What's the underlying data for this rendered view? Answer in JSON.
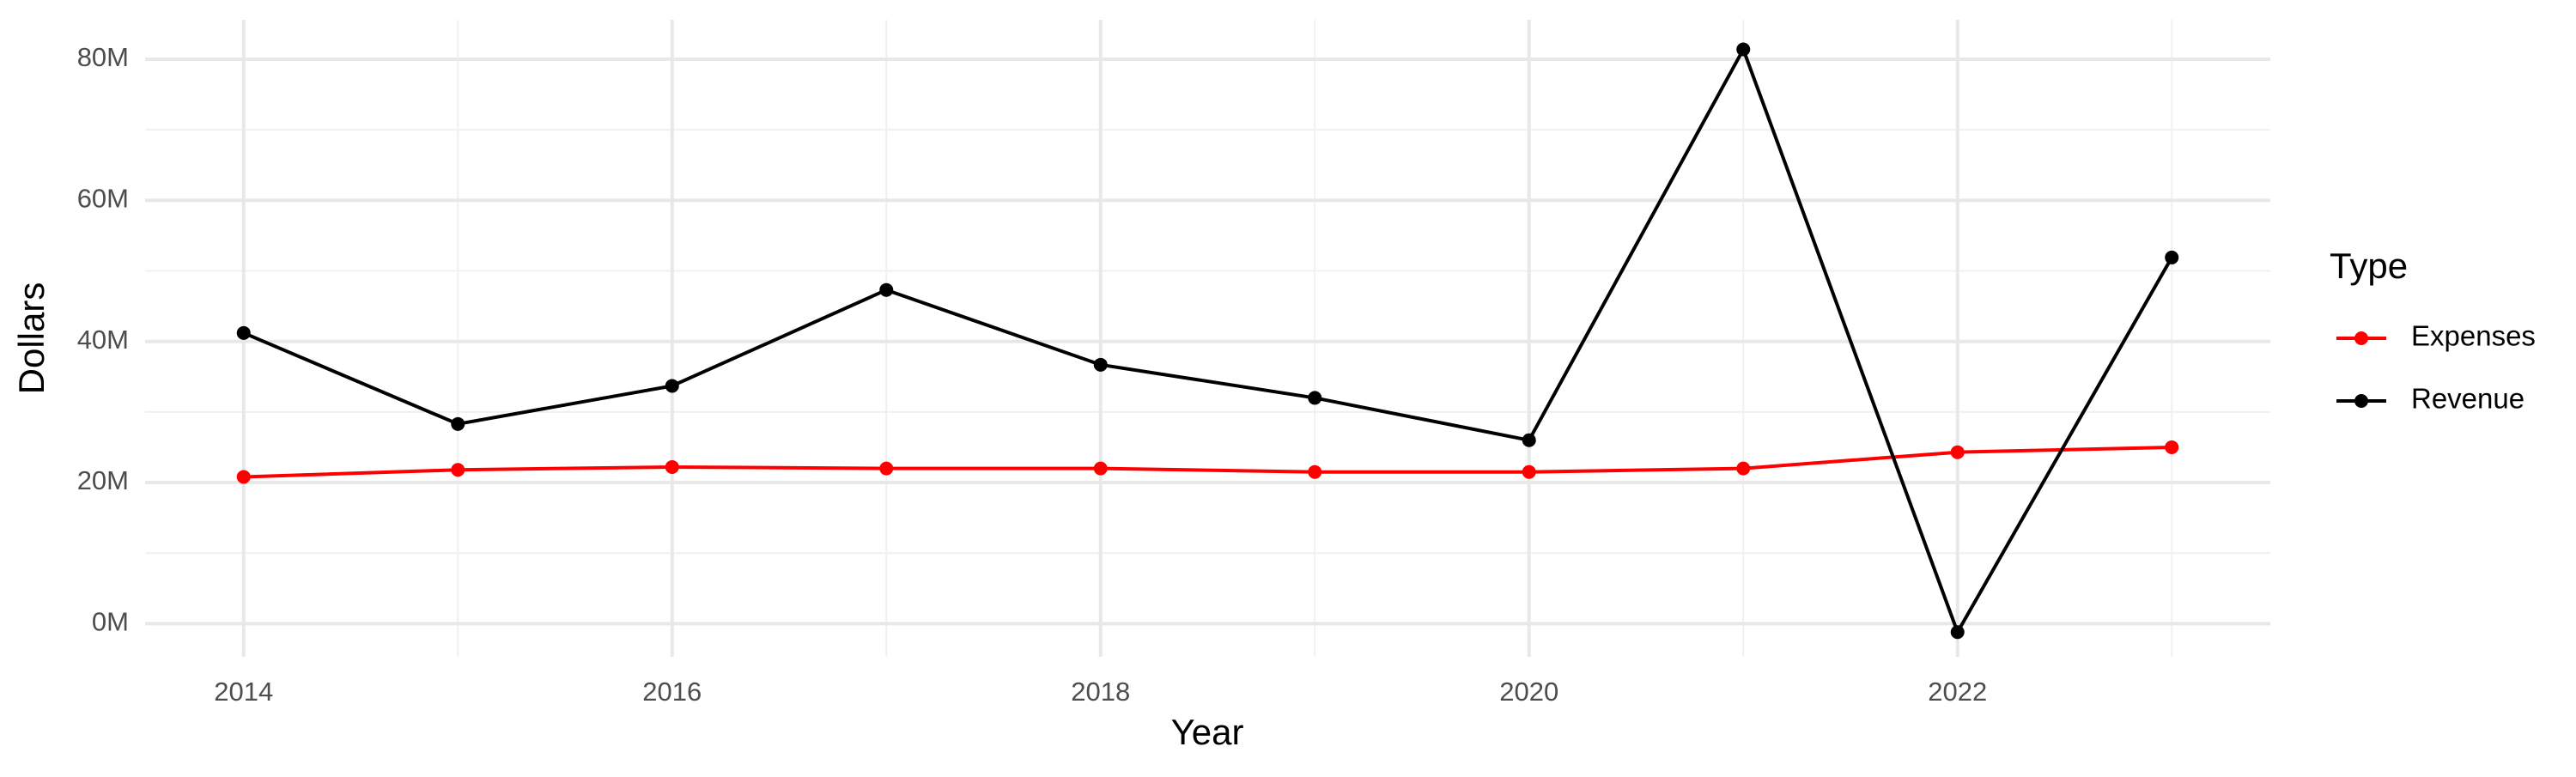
{
  "chart_data": {
    "type": "line",
    "x_label": "Year",
    "y_label": "Dollars",
    "legend_title": "Type",
    "x": [
      2014,
      2015,
      2016,
      2017,
      2018,
      2019,
      2020,
      2021,
      2022,
      2023
    ],
    "series": [
      {
        "name": "Expenses",
        "color": "#ff0000",
        "values": [
          20.8,
          21.8,
          22.2,
          22.0,
          22.0,
          21.5,
          21.5,
          22.0,
          24.3,
          25.0
        ]
      },
      {
        "name": "Revenue",
        "color": "#000000",
        "values": [
          41.2,
          28.3,
          33.7,
          47.3,
          36.7,
          32.0,
          26.0,
          81.4,
          -1.2,
          51.9
        ]
      }
    ],
    "xlim": [
      2013.54,
      2023.46
    ],
    "xticks": [
      2014,
      2016,
      2018,
      2020,
      2022
    ],
    "ylim": [
      -4.7,
      85.6
    ],
    "yticks": [
      {
        "value": 0,
        "label": "0M"
      },
      {
        "value": 20,
        "label": "20M"
      },
      {
        "value": 40,
        "label": "40M"
      },
      {
        "value": 60,
        "label": "60M"
      },
      {
        "value": 80,
        "label": "80M"
      }
    ],
    "grid": true,
    "minor_grid": true,
    "legend_position": "right"
  }
}
